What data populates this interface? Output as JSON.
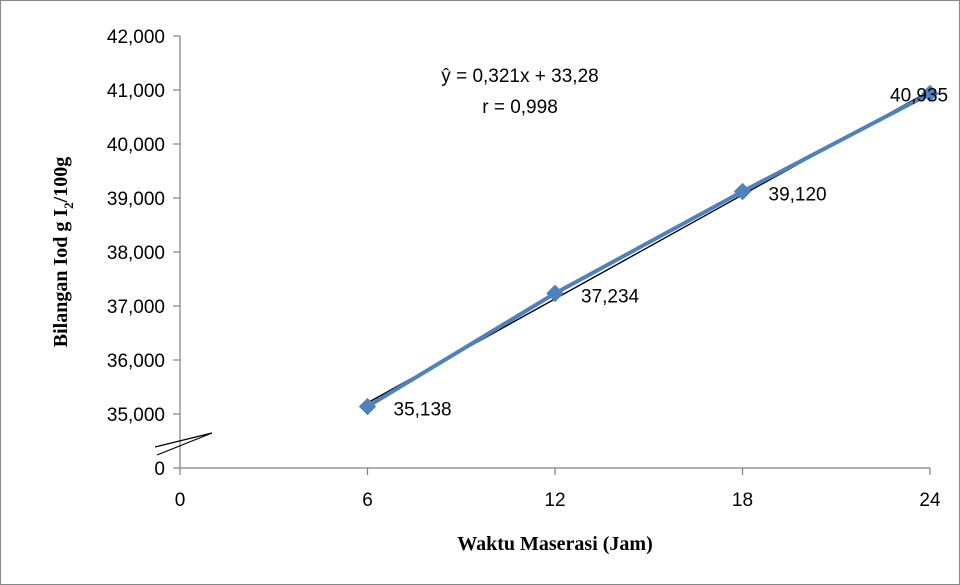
{
  "chart_data": {
    "type": "scatter",
    "xlabel": "Waktu Maserasi (Jam)",
    "ylabel_main": "Bilangan Iod g I",
    "ylabel_subscript": "2",
    "ylabel_tail": "/100g",
    "x_ticks": [
      "0",
      "6",
      "12",
      "18",
      "24"
    ],
    "y_ticks": [
      "0",
      "35,000",
      "36,000",
      "37,000",
      "38,000",
      "39,000",
      "40,000",
      "41,000",
      "42,000"
    ],
    "xlim": [
      0,
      24
    ],
    "ylim": [
      35000,
      42000
    ],
    "axis_break": true,
    "series": [
      {
        "x": [
          6,
          12,
          18,
          24
        ],
        "y": [
          35138,
          37234,
          39120,
          40935
        ],
        "labels": [
          "35,138",
          "37,234",
          "39,120",
          "40,935"
        ],
        "marker": "diamond",
        "color": "#4F81BD"
      }
    ],
    "trendline": {
      "slope": 0.321,
      "intercept": 33.28,
      "color": "#000000"
    },
    "equation": "ŷ = 0,321x + 33,28",
    "correlation": "r = 0,998"
  }
}
